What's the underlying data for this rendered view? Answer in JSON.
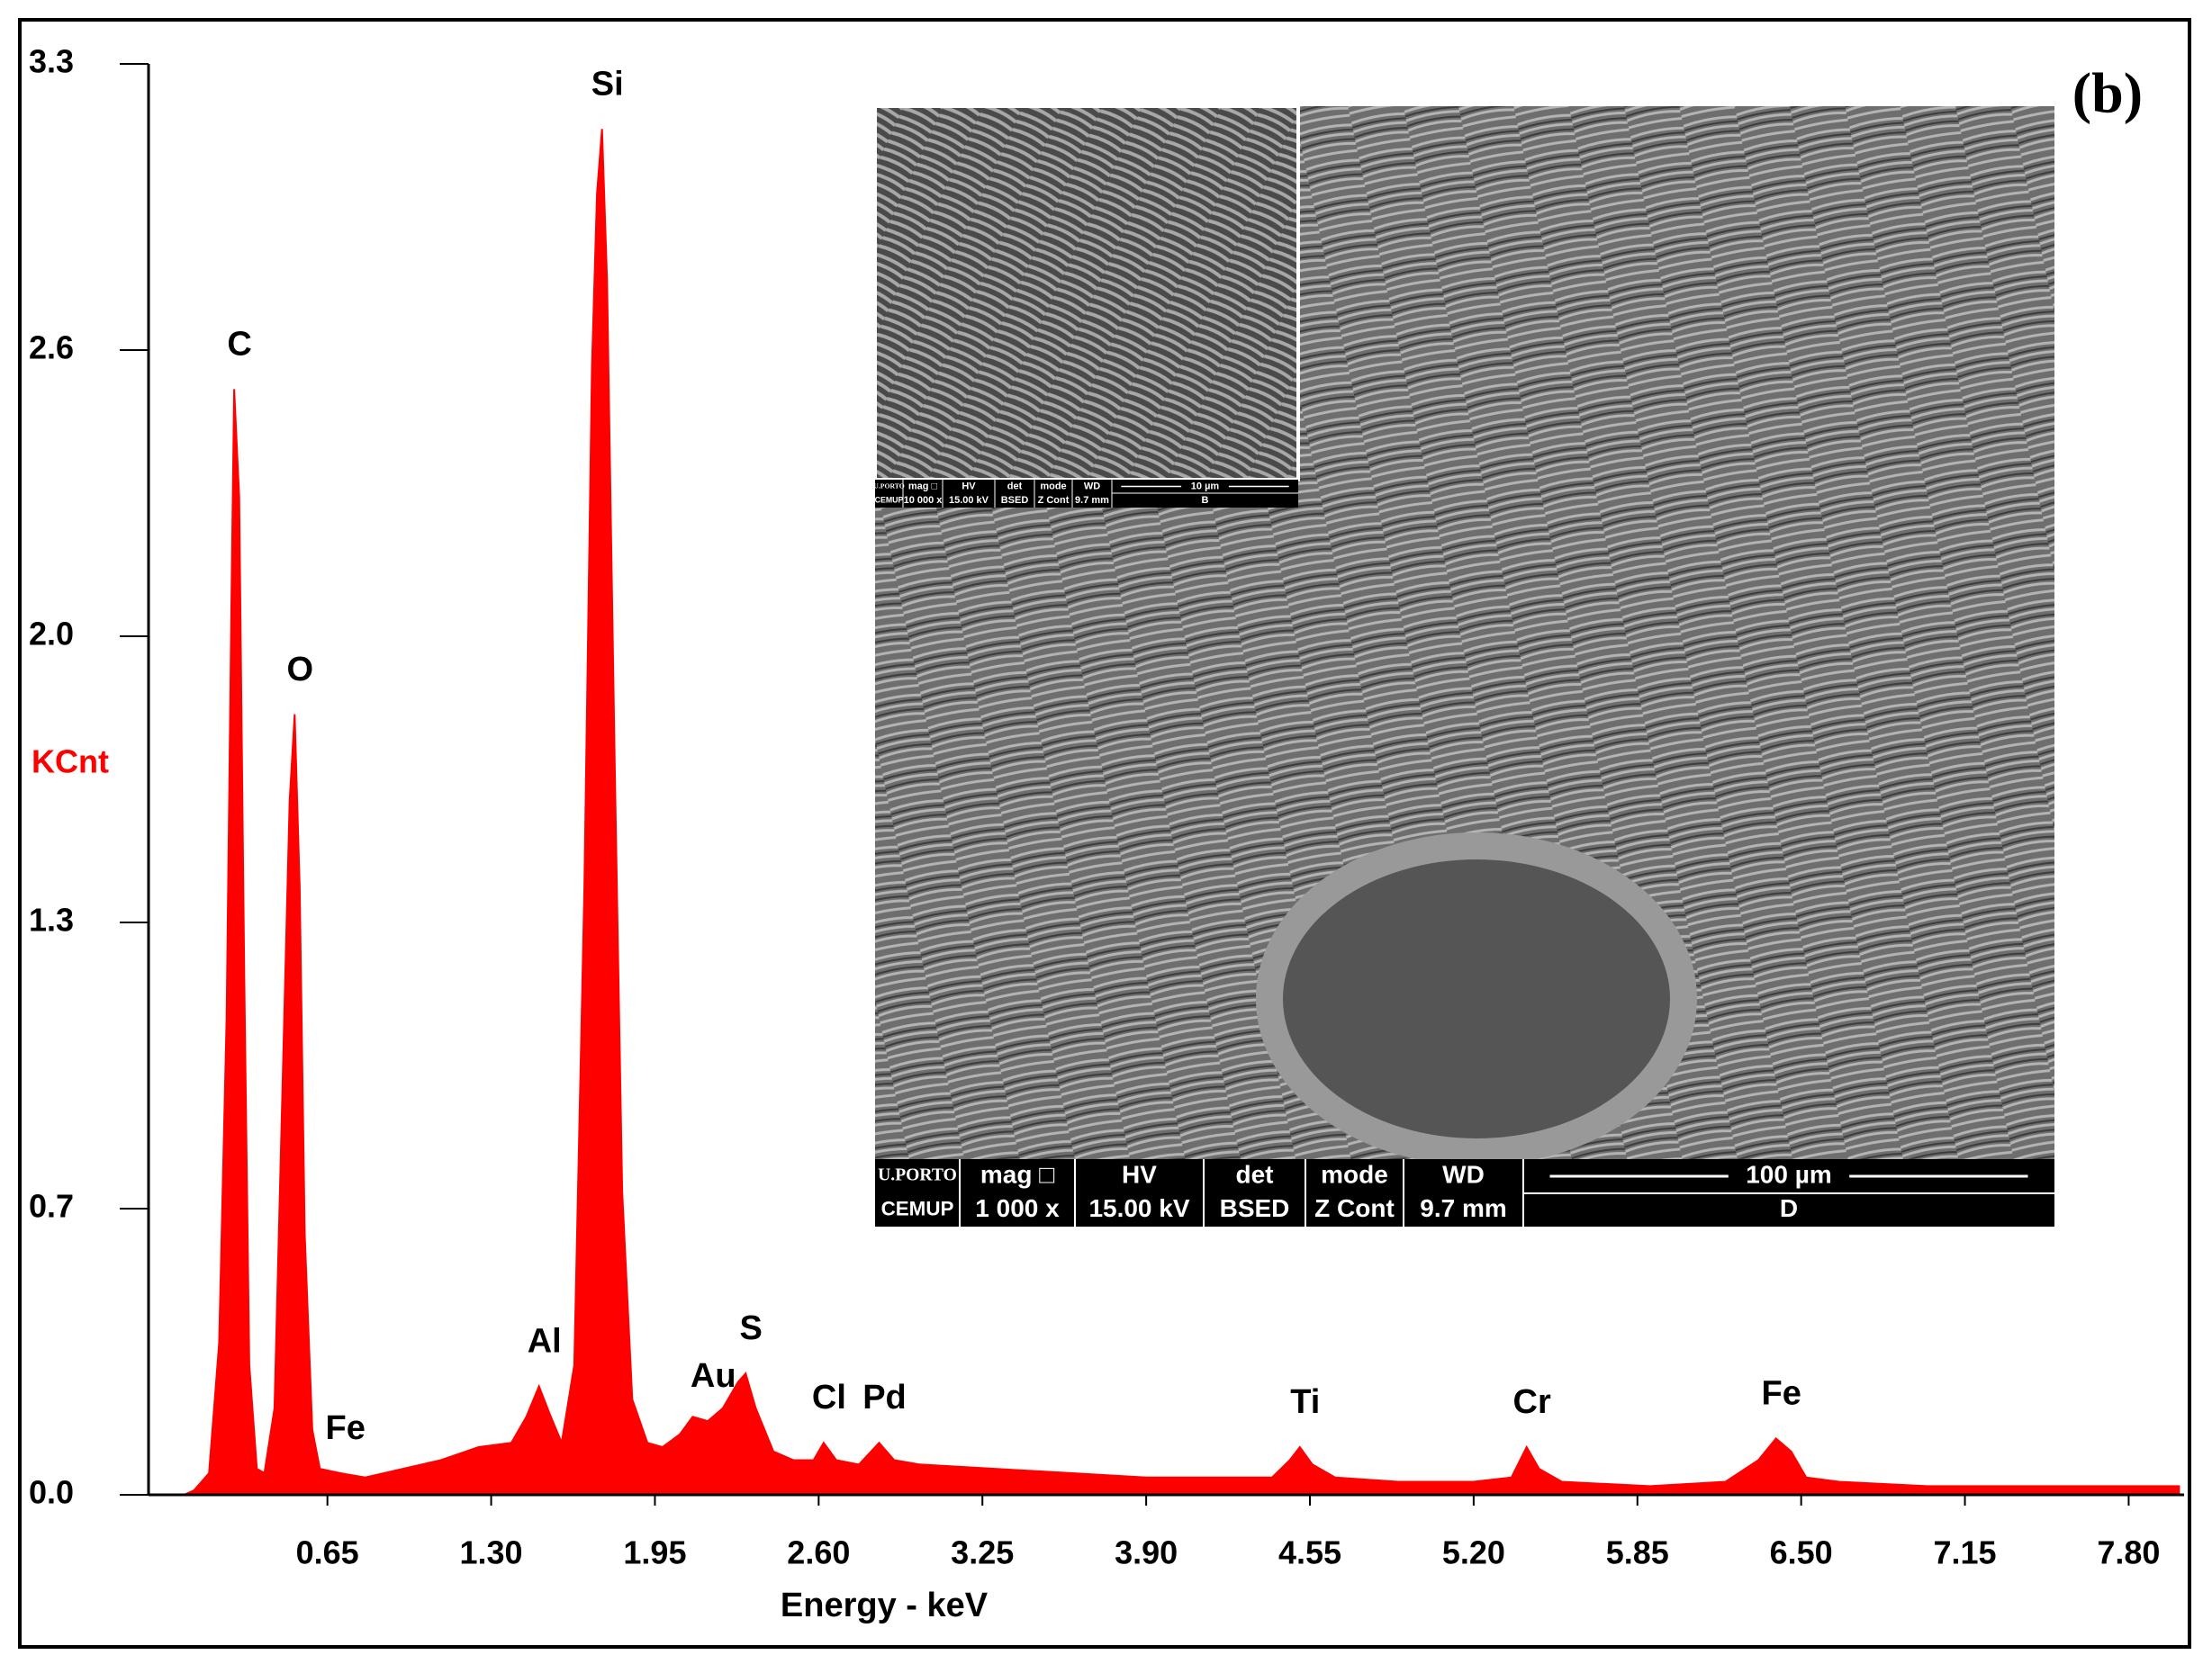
{
  "chart_data": {
    "type": "area",
    "title": "(b)",
    "x_label": "Energy - keV",
    "y_label": "KCnt",
    "color": "#ff0000",
    "x": [
      0.08,
      0.12,
      0.18,
      0.22,
      0.25,
      0.27,
      0.28,
      0.3,
      0.32,
      0.34,
      0.37,
      0.4,
      0.44,
      0.47,
      0.5,
      0.52,
      0.54,
      0.56,
      0.59,
      0.62,
      0.7,
      0.8,
      0.95,
      1.1,
      1.25,
      1.38,
      1.44,
      1.49,
      1.53,
      1.58,
      1.63,
      1.67,
      1.7,
      1.72,
      1.74,
      1.76,
      1.79,
      1.82,
      1.86,
      1.92,
      1.98,
      2.05,
      2.1,
      2.16,
      2.22,
      2.28,
      2.31,
      2.35,
      2.42,
      2.5,
      2.58,
      2.62,
      2.67,
      2.76,
      2.84,
      2.9,
      3.0,
      3.3,
      3.6,
      3.9,
      4.2,
      4.4,
      4.47,
      4.51,
      4.56,
      4.65,
      4.9,
      5.2,
      5.35,
      5.41,
      5.46,
      5.55,
      5.9,
      6.2,
      6.33,
      6.4,
      6.46,
      6.52,
      6.65,
      7.0,
      7.4,
      7.8,
      8.0
    ],
    "values": [
      0.0,
      0.01,
      0.05,
      0.35,
      1.1,
      2.1,
      2.55,
      2.3,
      1.2,
      0.3,
      0.06,
      0.05,
      0.2,
      0.9,
      1.6,
      1.8,
      1.4,
      0.6,
      0.15,
      0.06,
      0.05,
      0.04,
      0.06,
      0.08,
      0.11,
      0.12,
      0.18,
      0.25,
      0.19,
      0.12,
      0.3,
      1.4,
      2.6,
      3.0,
      3.15,
      2.8,
      1.7,
      0.7,
      0.22,
      0.12,
      0.11,
      0.14,
      0.18,
      0.17,
      0.2,
      0.26,
      0.28,
      0.2,
      0.1,
      0.08,
      0.08,
      0.12,
      0.08,
      0.07,
      0.12,
      0.08,
      0.07,
      0.06,
      0.05,
      0.04,
      0.04,
      0.04,
      0.08,
      0.11,
      0.07,
      0.04,
      0.03,
      0.03,
      0.04,
      0.11,
      0.06,
      0.03,
      0.02,
      0.03,
      0.08,
      0.13,
      0.1,
      0.04,
      0.03,
      0.02,
      0.02,
      0.02,
      0.02
    ],
    "xlim": [
      -0.06,
      8.02
    ],
    "ylim": [
      0,
      3.3
    ],
    "xticks": [
      0.65,
      {
        "value": 1.3,
        "label": "1.30"
      },
      1.95,
      {
        "value": 2.6,
        "label": "2.60"
      },
      3.25,
      {
        "value": 3.9,
        "label": "3.90"
      },
      4.55,
      {
        "value": 5.2,
        "label": "5.20"
      },
      5.85,
      {
        "value": 6.5,
        "label": "6.50"
      },
      7.15,
      {
        "value": 7.8,
        "label": "7.80"
      }
    ],
    "yticks": [
      {
        "value": 0,
        "label": "0.0"
      },
      {
        "value": 0.66,
        "label": "0.7"
      },
      {
        "value": 1.32,
        "label": "1.3"
      },
      {
        "value": 1.98,
        "label": "2.0"
      },
      {
        "value": 2.64,
        "label": "2.6"
      },
      3.3
    ],
    "annotations": [
      {
        "text": "C",
        "x": 0.28
      },
      {
        "text": "O",
        "x": 0.52
      },
      {
        "text": "Fe",
        "x": 0.7
      },
      {
        "text": "Al",
        "x": 1.49
      },
      {
        "text": "Si",
        "x": 1.74
      },
      {
        "text": "Au",
        "x": 2.16
      },
      {
        "text": "S",
        "x": 2.31
      },
      {
        "text": "Cl",
        "x": 2.62
      },
      {
        "text": "Pd",
        "x": 2.84
      },
      {
        "text": "Ti",
        "x": 4.51
      },
      {
        "text": "Cr",
        "x": 5.41
      },
      {
        "text": "Fe",
        "x": 6.4
      }
    ]
  },
  "micrograph": {
    "main": {
      "logo_top": "U.PORTO",
      "logo_bottom": "CEMUP",
      "headers": [
        "mag □",
        "HV",
        "det",
        "mode",
        "WD"
      ],
      "values": [
        "1 000 x",
        "15.00 kV",
        "BSED",
        "Z Cont",
        "9.7 mm"
      ],
      "scale_bar": "100 µm",
      "label": "D"
    },
    "inset": {
      "logo_top": "U.PORTO",
      "logo_bottom": "CEMUP",
      "headers": [
        "mag □",
        "HV",
        "det",
        "mode",
        "WD"
      ],
      "values": [
        "10 000 x",
        "15.00 kV",
        "BSED",
        "Z Cont",
        "9.7 mm"
      ],
      "scale_bar": "10 µm",
      "label": "B"
    }
  }
}
